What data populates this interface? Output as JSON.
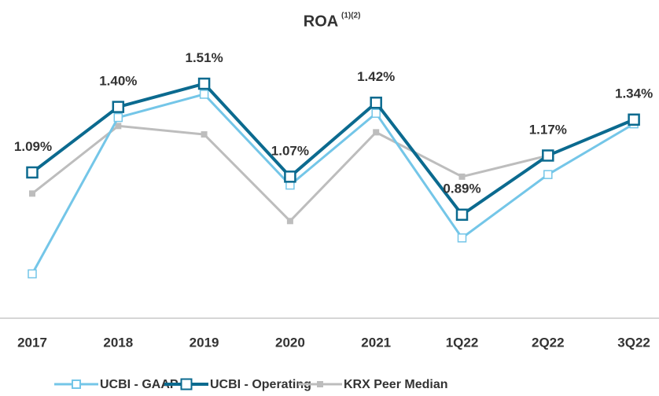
{
  "chart_data": {
    "type": "line",
    "title": "ROA",
    "title_note": "(1)(2)",
    "categories": [
      "2017",
      "2018",
      "2019",
      "2020",
      "2021",
      "1Q22",
      "2Q22",
      "3Q22"
    ],
    "series": [
      {
        "name": "UCBI - GAAP",
        "color": "#74c6e8",
        "marker": "hollow-square",
        "values": [
          0.61,
          1.35,
          1.46,
          1.03,
          1.37,
          0.78,
          1.08,
          1.32
        ]
      },
      {
        "name": "UCBI - Operating",
        "color": "#0b6a8f",
        "marker": "hollow-square",
        "values": [
          1.09,
          1.4,
          1.51,
          1.07,
          1.42,
          0.89,
          1.17,
          1.34
        ],
        "value_labels": [
          "1.09%",
          "1.40%",
          "1.51%",
          "1.07%",
          "1.42%",
          "0.89%",
          "1.17%",
          "1.34%"
        ]
      },
      {
        "name": "KRX Peer Median",
        "color": "#bdbdbd",
        "marker": "filled-square",
        "values": [
          0.99,
          1.31,
          1.27,
          0.86,
          1.28,
          1.07,
          1.17,
          null
        ]
      }
    ],
    "ylim": [
      0.4,
      1.75
    ],
    "legend": "bottom"
  }
}
